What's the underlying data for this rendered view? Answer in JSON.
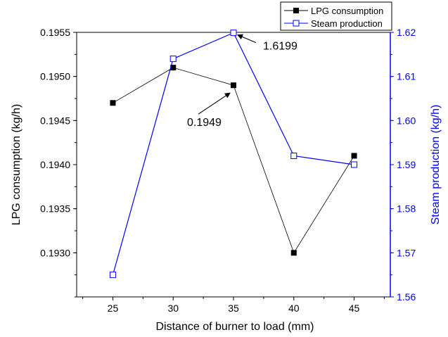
{
  "chart_data": {
    "type": "line",
    "xlabel": "Distance of burner to load (mm)",
    "ylabel_left": "LPG consumption (kg/h)",
    "ylabel_right": "Steam production (kg/h)",
    "x": [
      25,
      30,
      35,
      40,
      45
    ],
    "xlim": [
      22,
      48
    ],
    "ylim_left": [
      0.1925,
      0.1955
    ],
    "ylim_right": [
      1.56,
      1.62
    ],
    "x_ticks": [
      "25",
      "30",
      "35",
      "40",
      "45"
    ],
    "y_ticks_left": [
      "0.1930",
      "0.1935",
      "0.1940",
      "0.1945",
      "0.1950",
      "0.1955"
    ],
    "y_ticks_right": [
      "1.56",
      "1.57",
      "1.58",
      "1.59",
      "1.60",
      "1.61",
      "1.62"
    ],
    "grid": false,
    "legend_position": "top-right",
    "series": [
      {
        "name": "LPG consumption",
        "axis": "left",
        "color": "#000000",
        "marker": "filled-square",
        "values": [
          0.1947,
          0.1951,
          0.1949,
          0.193,
          0.1941
        ]
      },
      {
        "name": "Steam production",
        "axis": "right",
        "color": "#0000ff",
        "marker": "open-square",
        "values": [
          1.565,
          1.614,
          1.6199,
          1.592,
          1.59
        ]
      }
    ],
    "annotations": [
      {
        "text": "1.6199",
        "series": "Steam production",
        "x": 35,
        "y": 1.6199
      },
      {
        "text": "0.1949",
        "series": "LPG consumption",
        "x": 35,
        "y": 0.1949
      }
    ]
  }
}
